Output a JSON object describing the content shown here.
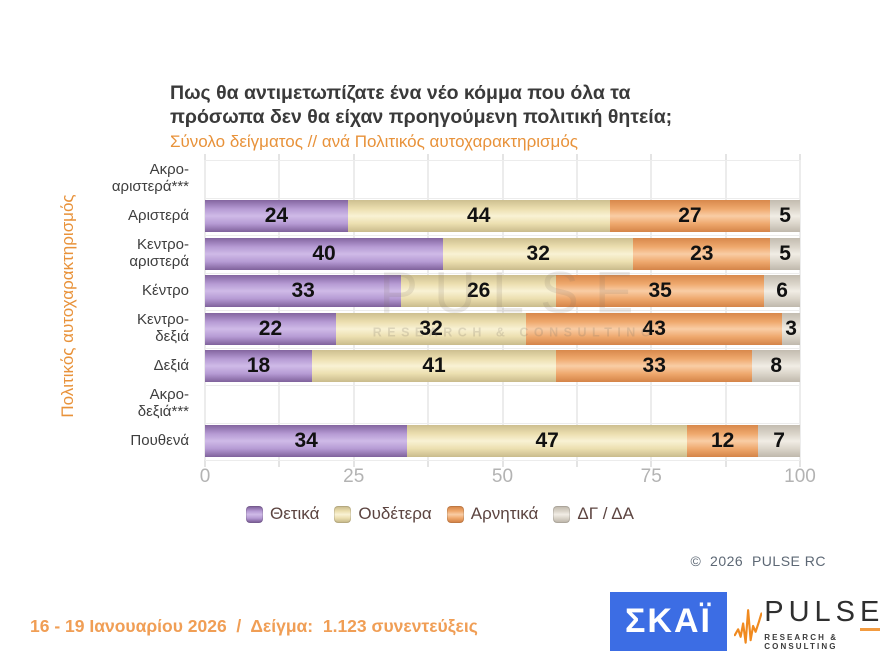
{
  "header": {
    "title": "Πως θα αντιμετωπίζατε ένα νέο κόμμα που όλα τα\nπρόσωπα δεν θα είχαν προηγούμενη πολιτική θητεία;",
    "subtitle": "Σύνολο δείγματος // ανά Πολιτικός αυτοχαρακτηρισμός"
  },
  "chart_data": {
    "type": "bar",
    "horizontal": true,
    "stacked": true,
    "ylabel": "Πολιτικός αυτοχαρακτηρισμός",
    "xlim": [
      0,
      100
    ],
    "x_ticks": [
      0,
      25,
      50,
      75,
      100
    ],
    "gridline_step": 12.5,
    "legend_position": "bottom",
    "categories": [
      "Ακρο-\nαριστερά***",
      "Αριστερά",
      "Κεντρο-\nαριστερά",
      "Κέντρο",
      "Κεντρο-\nδεξιά",
      "Δεξιά",
      "Ακρο-\nδεξιά***",
      "Πουθενά"
    ],
    "series": [
      {
        "name": "Θετικά",
        "color": "#ab8dcc",
        "values": [
          null,
          24,
          40,
          33,
          22,
          18,
          null,
          34
        ]
      },
      {
        "name": "Ουδέτερα",
        "color": "#f0e5ba",
        "values": [
          null,
          44,
          32,
          26,
          32,
          41,
          null,
          47
        ]
      },
      {
        "name": "Αρνητικά",
        "color": "#efa86f",
        "values": [
          null,
          27,
          23,
          35,
          43,
          33,
          null,
          12
        ]
      },
      {
        "name": "ΔΓ / ΔΑ",
        "color": "#e6e0d4",
        "values": [
          null,
          5,
          5,
          6,
          3,
          8,
          null,
          7
        ]
      }
    ]
  },
  "watermark": {
    "line1": "PULSE",
    "line2": "RESEARCH & CONSULTING"
  },
  "footer": {
    "copyright": "©  2026  PULSE RC",
    "survey_info": "16 - 19 Ιανουαρίου 2026  /  Δείγμα:  1.123 συνεντεύξεις"
  },
  "logos": {
    "skai": "ΣΚΑΪ",
    "pulse_name": "PULSE",
    "pulse_subtitle": "RESEARCH & CONSULTING"
  }
}
